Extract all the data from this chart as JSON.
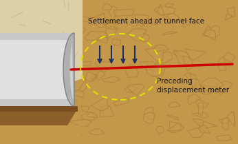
{
  "figsize": [
    3.46,
    2.09
  ],
  "dpi": 100,
  "bg_color": "#cccccc",
  "soil_color": "#c4984a",
  "soil_stone_color": "#a87830",
  "soil_stone_fill": "#c49850",
  "left_soil_color": "#ddd0a8",
  "left_soil_line_color": "#b8a880",
  "tunnel_bg": "#e0e0e0",
  "tunnel_wall_outer": "#a0a0a0",
  "tunnel_wall_inner": "#d8d8d8",
  "tunnel_wall_highlight": "#f0f0f0",
  "tunnel_shadow": "#909090",
  "floor_top_color": "#7a4e20",
  "floor_main_color": "#8b5e2a",
  "floor_side_color": "#6b3e10",
  "floor_bottom_color": "#c4984a",
  "red_line_color": "#cc0000",
  "arrow_color": "#1a3060",
  "circle_color": "#e0e000",
  "text_color": "#111111",
  "title_text": "Settlement ahead of tunnel face",
  "label_text": "Preceding\ndisplacement meter",
  "title_fontsize": 7.5,
  "label_fontsize": 7.5
}
